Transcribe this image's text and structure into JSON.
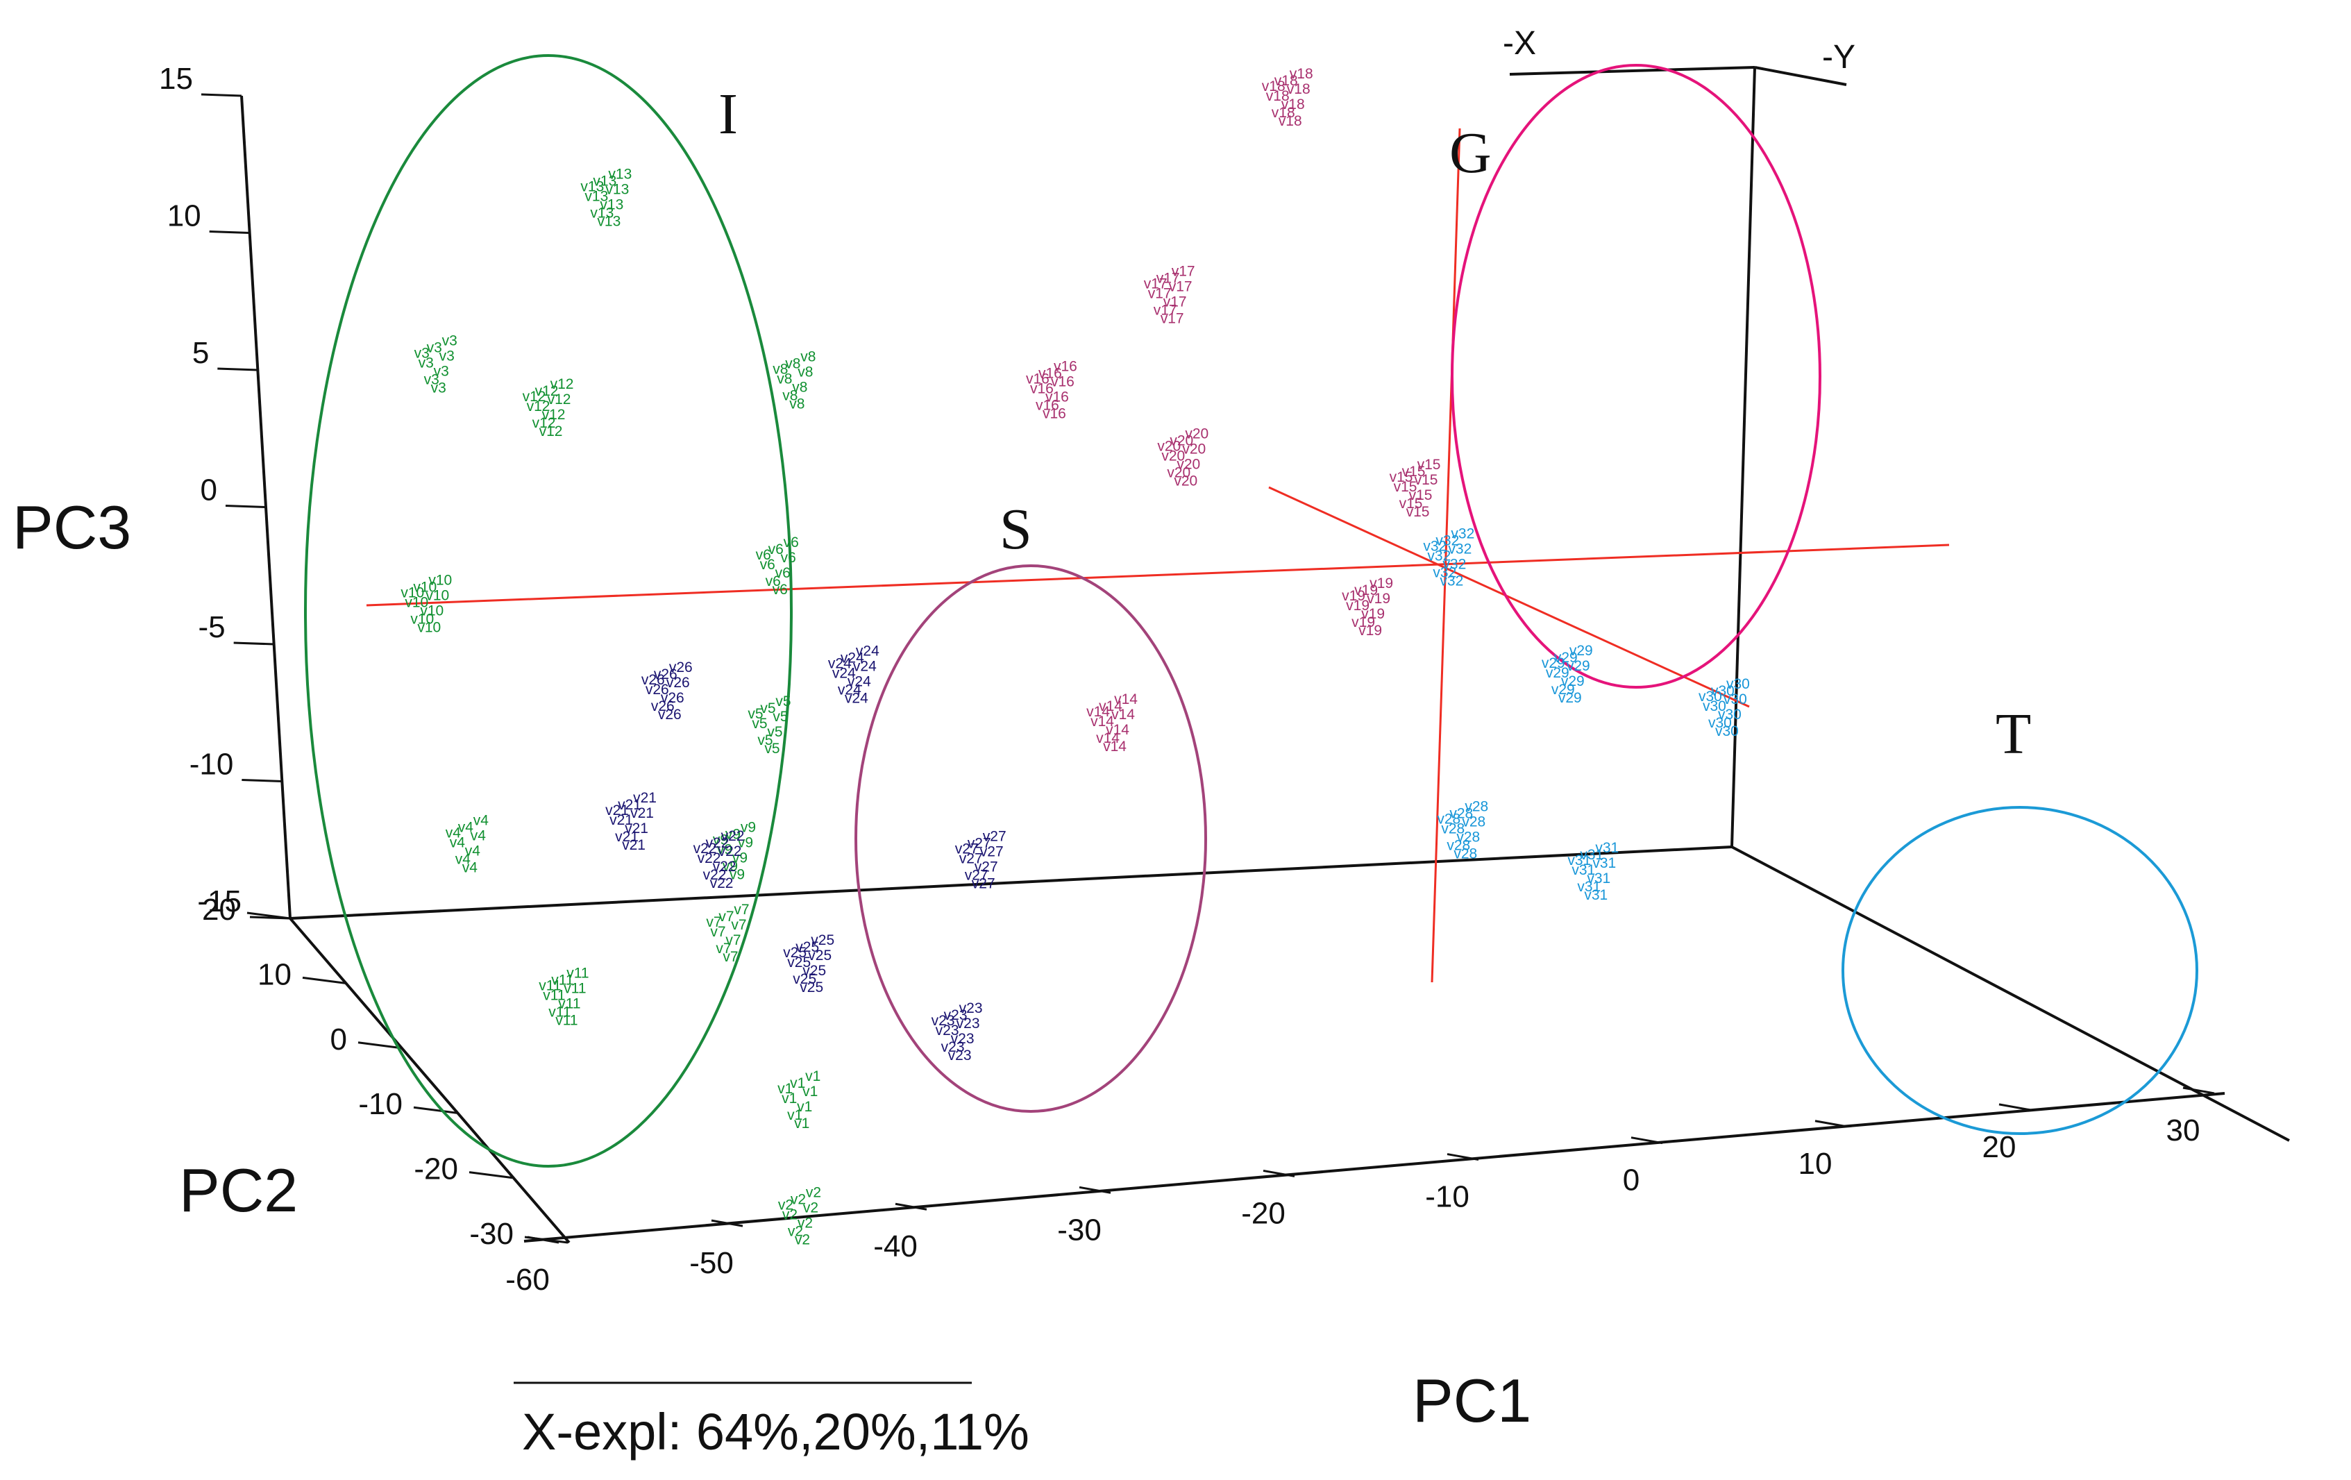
{
  "chart_data": {
    "type": "scatter",
    "projection": "3d",
    "title": "",
    "xlabel": "PC1",
    "ylabel": "PC2",
    "zlabel": "PC3",
    "explained_variance": "X-expl: 64%,20%,11%",
    "orientation_labels": [
      "-X",
      "-Y"
    ],
    "xlim": [
      -60,
      30
    ],
    "ylim": [
      -30,
      20
    ],
    "zlim": [
      -15,
      15
    ],
    "x_ticks": [
      "-60",
      "-50",
      "-40",
      "-30",
      "-20",
      "-10",
      "0",
      "10",
      "20",
      "30"
    ],
    "y_ticks": [
      "20",
      "10",
      "0",
      "-10",
      "-20",
      "-30"
    ],
    "z_ticks": [
      "15",
      "10",
      "5",
      "0",
      "-5",
      "-10",
      "-15"
    ],
    "groups": [
      {
        "name": "I",
        "color": "#109030",
        "ellipse_color": "#1a8a3c",
        "points": [
          {
            "label": "v13",
            "pc1": -42,
            "pc2": 9,
            "pc3": 13.8
          },
          {
            "label": "v3",
            "pc1": -52,
            "pc2": 12,
            "pc3": 7.3
          },
          {
            "label": "v12",
            "pc1": -48,
            "pc2": 4,
            "pc3": 7.5
          },
          {
            "label": "v8",
            "pc1": -32,
            "pc2": 5,
            "pc3": 7.8
          },
          {
            "label": "v6",
            "pc1": -36,
            "pc2": -2,
            "pc3": 2.8
          },
          {
            "label": "v10",
            "pc1": -55,
            "pc2": 8,
            "pc3": -0.4
          },
          {
            "label": "v5",
            "pc1": -39,
            "pc2": -8,
            "pc3": -1.5
          },
          {
            "label": "v9",
            "pc1": -41,
            "pc2": -6,
            "pc3": -6.5
          },
          {
            "label": "v4",
            "pc1": -56,
            "pc2": -1,
            "pc3": -7
          },
          {
            "label": "v7",
            "pc1": -43,
            "pc2": -10,
            "pc3": -8.5
          },
          {
            "label": "v11",
            "pc1": -53,
            "pc2": -8,
            "pc3": -11
          },
          {
            "label": "v1",
            "pc1": -44,
            "pc2": -25,
            "pc3": -11
          },
          {
            "label": "v2",
            "pc1": -46,
            "pc2": -30,
            "pc3": -14
          }
        ]
      },
      {
        "name": "S",
        "color": "#1a1470",
        "ellipse_color": "#a3437a",
        "points": [
          {
            "label": "v26",
            "pc1": -41,
            "pc2": 6,
            "pc3": -3.5
          },
          {
            "label": "v24",
            "pc1": -29,
            "pc2": 7,
            "pc3": -3.5
          },
          {
            "label": "v21",
            "pc1": -45,
            "pc2": 2,
            "pc3": -7.2
          },
          {
            "label": "v22",
            "pc1": -40,
            "pc2": 1,
            "pc3": -8.5
          },
          {
            "label": "v25",
            "pc1": -38,
            "pc2": -9,
            "pc3": -10
          },
          {
            "label": "v27",
            "pc1": -25,
            "pc2": -3,
            "pc3": -8
          },
          {
            "label": "v23",
            "pc1": -30,
            "pc2": -12,
            "pc3": -12
          }
        ]
      },
      {
        "name": "G",
        "color": "#a8306e",
        "ellipse_color": "#e5137a",
        "points": [
          {
            "label": "v18",
            "pc1": 3,
            "pc2": 16,
            "pc3": 14.5
          },
          {
            "label": "v17",
            "pc1": -7,
            "pc2": 10,
            "pc3": 9
          },
          {
            "label": "v16",
            "pc1": -15,
            "pc2": 9,
            "pc3": 6
          },
          {
            "label": "v20",
            "pc1": -9,
            "pc2": 3,
            "pc3": 4.8
          },
          {
            "label": "v15",
            "pc1": 5,
            "pc2": 2,
            "pc3": 3.5
          },
          {
            "label": "v19",
            "pc1": 0,
            "pc2": -3,
            "pc3": 0.5
          },
          {
            "label": "v14",
            "pc1": -16,
            "pc2": -2,
            "pc3": -3.5
          }
        ]
      },
      {
        "name": "T",
        "color": "#1896d8",
        "ellipse_color": "#1b9ad6",
        "points": [
          {
            "label": "v32",
            "pc1": 12,
            "pc2": 18,
            "pc3": -3
          },
          {
            "label": "v29",
            "pc1": 17,
            "pc2": 12,
            "pc3": -6
          },
          {
            "label": "v30",
            "pc1": 26,
            "pc2": 10,
            "pc3": -7
          },
          {
            "label": "v28",
            "pc1": 8,
            "pc2": 6,
            "pc3": -10
          },
          {
            "label": "v31",
            "pc1": 15,
            "pc2": 3,
            "pc3": -11
          }
        ]
      }
    ]
  }
}
